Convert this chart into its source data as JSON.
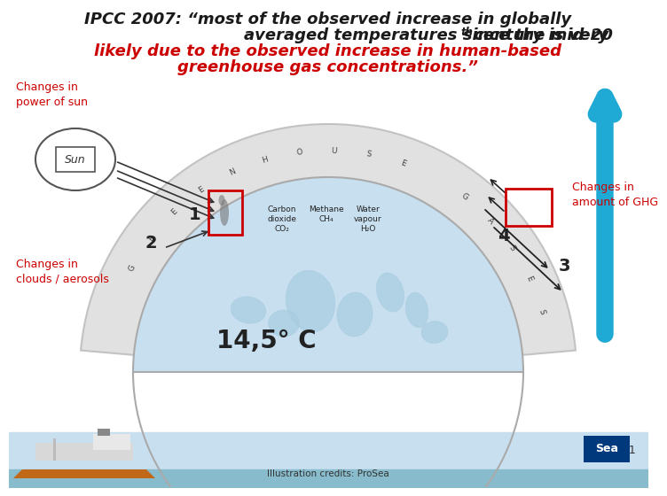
{
  "title_line1": "IPCC 2007: “most of the observed increase in globally",
  "title_line2_a": "averaged temperatures since the mid-20",
  "title_line2_super": "th",
  "title_line2_b": " century is very",
  "title_line3": "likely due to the observed increase in human-based",
  "title_line4": "greenhouse gas concentrations.”",
  "title_color_black": "#1a1a1a",
  "title_color_red": "#cc0000",
  "bg_color": "#ffffff",
  "label_changes_sun": "Changes in\npower of sun",
  "label_sun": "Sun",
  "label_1": "1",
  "label_2": "2",
  "label_3": "3",
  "label_4": "4",
  "label_changes_clouds": "Changes in\nclouds / aerosols",
  "label_changes_ghg": "Changes in\namount of GHG",
  "label_temp": "14,5° C",
  "label_co2": "Carbon\ndioxide\nCO₂",
  "label_ch4": "Methane\nCH₄",
  "label_h2o": "Water\nvapour\nH₂O",
  "label_illustration": "Illustration credits: ProSea",
  "label_page": "11",
  "arrow_blue_color": "#1eaad4",
  "red_box_color": "#cc0000",
  "globe_color": "#c8dff0",
  "globe_outline": "#aaaaaa",
  "atm_color": "#e0e0e0",
  "footer_color": "#c8dff0"
}
